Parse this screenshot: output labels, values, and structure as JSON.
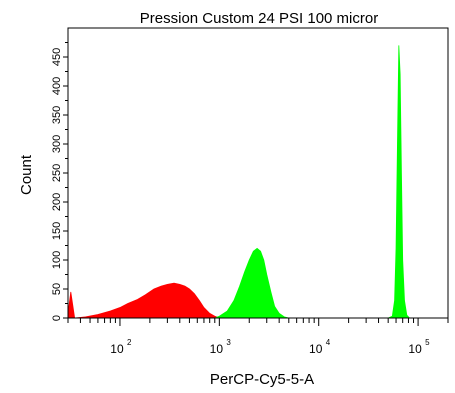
{
  "chart_data": {
    "type": "area",
    "title": "Pression Custom 24 PSI 100 micror",
    "xlabel": "PerCP-Cy5-5-A",
    "ylabel": "Count",
    "x_scale": "log",
    "xlim": [
      30,
      200000
    ],
    "ylim": [
      0,
      500
    ],
    "x_ticks": [
      {
        "base": "10",
        "exp": "2",
        "value": 100
      },
      {
        "base": "10",
        "exp": "3",
        "value": 1000
      },
      {
        "base": "10",
        "exp": "4",
        "value": 10000
      },
      {
        "base": "10",
        "exp": "5",
        "value": 100000
      }
    ],
    "y_ticks": [
      "0",
      "50",
      "100",
      "150",
      "200",
      "250",
      "300",
      "350",
      "400",
      "450"
    ],
    "grid": false,
    "legend": "none",
    "series": [
      {
        "color": "#ff0000",
        "x": [
          30,
          32,
          35,
          45,
          60,
          80,
          100,
          120,
          150,
          180,
          220,
          260,
          300,
          350,
          400,
          450,
          500,
          560,
          630,
          700,
          800,
          900,
          1000
        ],
        "values": [
          8,
          45,
          0,
          2,
          6,
          12,
          18,
          25,
          32,
          40,
          50,
          55,
          58,
          60,
          58,
          55,
          50,
          42,
          30,
          18,
          8,
          3,
          0
        ]
      },
      {
        "color": "#00ff00",
        "x": [
          900,
          1000,
          1200,
          1400,
          1600,
          1800,
          2000,
          2200,
          2400,
          2600,
          2800,
          3000,
          3300,
          3600,
          4000,
          4500,
          5000
        ],
        "values": [
          0,
          3,
          12,
          30,
          55,
          80,
          100,
          115,
          120,
          115,
          100,
          75,
          45,
          20,
          8,
          2,
          0
        ]
      },
      {
        "color": "#00ff00",
        "x": [
          50000,
          55000,
          58000,
          60000,
          62000,
          64000,
          66000,
          68000,
          70000,
          73000,
          77000,
          82000
        ],
        "values": [
          0,
          3,
          30,
          120,
          300,
          470,
          420,
          250,
          100,
          30,
          5,
          0
        ]
      }
    ]
  }
}
